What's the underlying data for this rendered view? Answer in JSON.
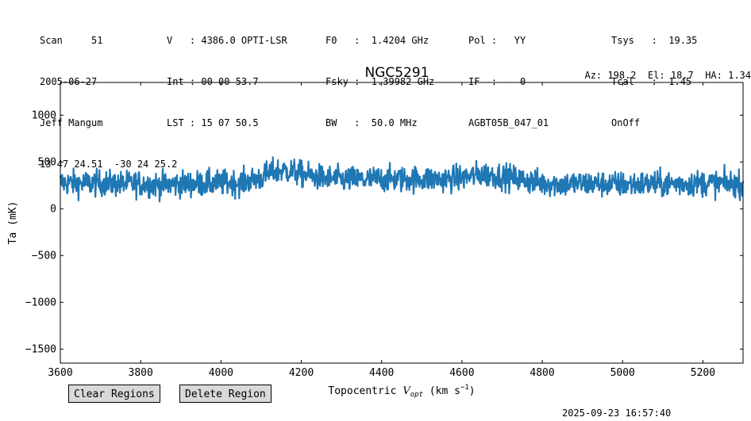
{
  "header": {
    "col1": [
      "Scan     51",
      "2005-06-27",
      "Jeff Mangum",
      "13 47 24.51  -30 24 25.2"
    ],
    "col2": [
      "V   : 4386.0 OPTI-LSR",
      "Int : 00 00 53.7",
      "LST : 15 07 50.5"
    ],
    "col3": [
      "F0   :  1.4204 GHz",
      "Fsky :  1.39982 GHz",
      "BW   :  50.0 MHz"
    ],
    "col4": [
      "Pol :   YY",
      "IF  :    0",
      "AGBT05B_047_01"
    ],
    "col5": [
      "Tsys   :  19.35",
      "Tcal   :  1.45",
      "OnOff"
    ],
    "azel": "Az: 198.2  El: 18.7  HA: 1.34"
  },
  "buttons": {
    "clear": "Clear Regions",
    "delete": "Delete Region"
  },
  "timestamp": "2025-09-23 16:57:40",
  "chart_data": {
    "type": "line",
    "title": "NGC5291",
    "xlabel": "Topocentric V_opt (km s^-1)",
    "ylabel": "Ta (mK)",
    "xlim": [
      3600,
      5300
    ],
    "ylim": [
      -1650,
      1350
    ],
    "xticks": [
      3600,
      3800,
      4000,
      4200,
      4400,
      4600,
      4800,
      5000,
      5200
    ],
    "yticks": [
      -1500,
      -1000,
      -500,
      0,
      500,
      1000
    ],
    "color": "#1f77b4",
    "grid": false,
    "series": [
      {
        "x": [
          3600,
          3650,
          3700,
          3750,
          3800,
          3850,
          3900,
          3950,
          4000,
          4050,
          4100,
          4125,
          4150,
          4175,
          4200,
          4250,
          4300,
          4350,
          4400,
          4450,
          4500,
          4550,
          4600,
          4650,
          4700,
          4750,
          4800,
          4850,
          4900,
          4950,
          5000,
          5050,
          5100,
          5150,
          5200,
          5250,
          5300
        ],
        "y": [
          280,
          270,
          275,
          265,
          270,
          255,
          265,
          270,
          275,
          280,
          330,
          390,
          410,
          400,
          370,
          330,
          315,
          310,
          320,
          315,
          320,
          315,
          330,
          370,
          350,
          310,
          275,
          265,
          270,
          265,
          260,
          265,
          265,
          270,
          275,
          270,
          265
        ]
      }
    ]
  }
}
